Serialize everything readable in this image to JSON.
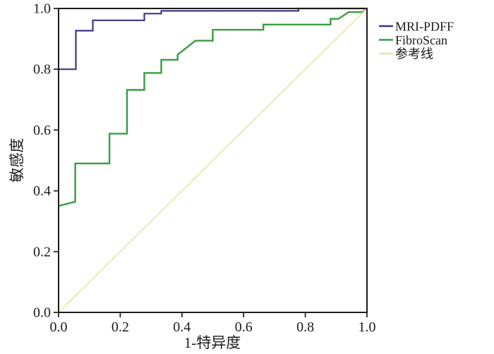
{
  "chart_data": {
    "type": "line",
    "chart_kind": "roc-curve-step",
    "title": "",
    "xlabel": "1-特异度",
    "ylabel": "敏感度",
    "xlim": [
      0,
      1
    ],
    "ylim": [
      0,
      1
    ],
    "x_tick_labels": [
      "0.0",
      "0.2",
      "0.4",
      "0.6",
      "0.8",
      "1.0"
    ],
    "y_tick_labels": [
      "0.0",
      "0.2",
      "0.4",
      "0.6",
      "0.8",
      "1.0"
    ],
    "grid": false,
    "background_color": "#ffffff",
    "axis_color": "#1b1b1b",
    "legend": {
      "position": "outside-top-right",
      "entries": [
        "MRI-PDFF",
        "FibroScan",
        "参考线"
      ]
    },
    "series": [
      {
        "name": "MRI-PDFF",
        "color": "#3b3588",
        "width": 2.2,
        "points": [
          [
            0,
            0.8
          ],
          [
            0.056,
            0.8
          ],
          [
            0.056,
            0.927
          ],
          [
            0.111,
            0.927
          ],
          [
            0.111,
            0.961
          ],
          [
            0.278,
            0.961
          ],
          [
            0.278,
            0.983
          ],
          [
            0.333,
            0.983
          ],
          [
            0.333,
            0.992
          ],
          [
            0.778,
            0.992
          ],
          [
            0.778,
            1
          ],
          [
            1,
            1
          ]
        ]
      },
      {
        "name": "FibroScan",
        "color": "#379e41",
        "width": 2.4,
        "points": [
          [
            0,
            0.35
          ],
          [
            0.054,
            0.364
          ],
          [
            0.054,
            0.49
          ],
          [
            0.165,
            0.49
          ],
          [
            0.165,
            0.588
          ],
          [
            0.222,
            0.588
          ],
          [
            0.222,
            0.732
          ],
          [
            0.278,
            0.732
          ],
          [
            0.278,
            0.788
          ],
          [
            0.333,
            0.788
          ],
          [
            0.333,
            0.831
          ],
          [
            0.386,
            0.831
          ],
          [
            0.386,
            0.848
          ],
          [
            0.444,
            0.894
          ],
          [
            0.5,
            0.894
          ],
          [
            0.5,
            0.93
          ],
          [
            0.664,
            0.93
          ],
          [
            0.664,
            0.947
          ],
          [
            0.882,
            0.947
          ],
          [
            0.882,
            0.966
          ],
          [
            0.908,
            0.966
          ],
          [
            0.94,
            0.988
          ],
          [
            0.985,
            0.988
          ],
          [
            1,
            1
          ]
        ]
      },
      {
        "name": "参考线",
        "color": "#e9e6a1",
        "width": 1.6,
        "points": [
          [
            0,
            0
          ],
          [
            1,
            1
          ]
        ]
      }
    ]
  }
}
